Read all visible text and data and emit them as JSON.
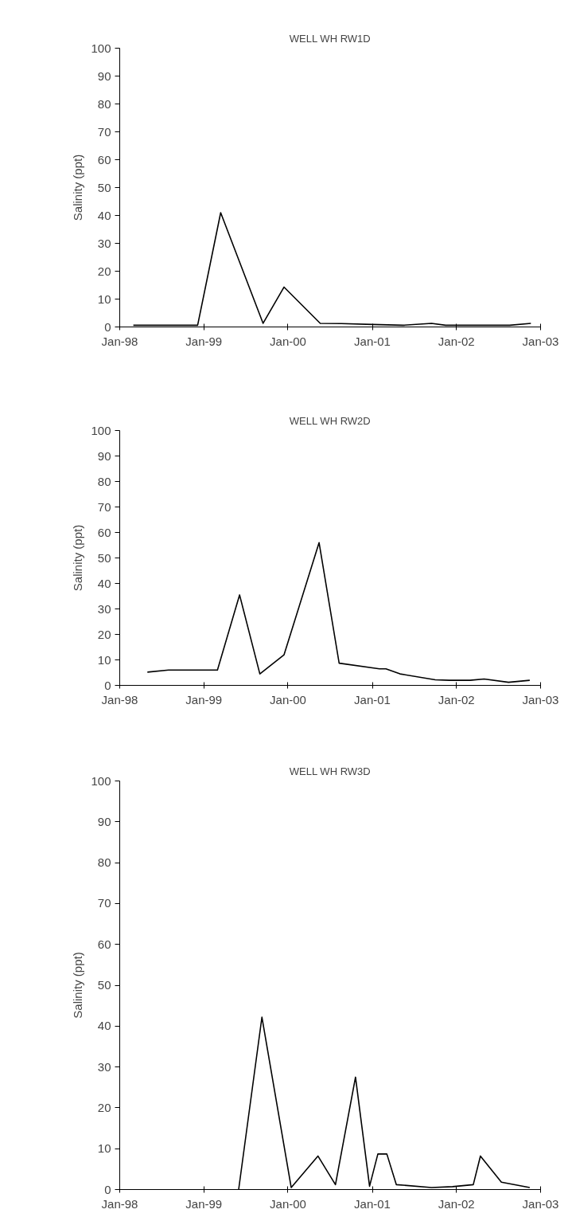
{
  "chart_data": [
    {
      "type": "line",
      "title": "WELL WH RW1D",
      "ylabel": "Salinity (ppt)",
      "grid": false,
      "marker": "none",
      "line_style": "solid",
      "xlim": [
        "1998-01-01",
        "2003-01-01"
      ],
      "ylim": [
        0,
        100
      ],
      "yticks": [
        0,
        10,
        20,
        30,
        40,
        50,
        60,
        70,
        80,
        90,
        100
      ],
      "xticks": [
        {
          "value": "1998-01-01",
          "label": "Jan-98"
        },
        {
          "value": "1999-01-01",
          "label": "Jan-99"
        },
        {
          "value": "2000-01-01",
          "label": "Jan-00"
        },
        {
          "value": "2001-01-01",
          "label": "Jan-01"
        },
        {
          "value": "2002-01-01",
          "label": "Jan-02"
        },
        {
          "value": "2003-01-01",
          "label": "Jan-03"
        }
      ],
      "series": [
        {
          "color": "#000000",
          "x": [
            "1998-03-01",
            "1998-12-05",
            "1999-03-15",
            "1999-09-15",
            "1999-12-15",
            "2000-05-20",
            "2000-08-20",
            "2001-01-01",
            "2001-05-15",
            "2001-09-15",
            "2001-11-15",
            "2002-08-20",
            "2002-11-20"
          ],
          "values": [
            0.6,
            0.6,
            41,
            1.3,
            14.3,
            1.3,
            1.2,
            0.9,
            0.6,
            1.3,
            0.6,
            0.6,
            1.3
          ]
        }
      ]
    },
    {
      "type": "line",
      "title": "WELL WH RW2D",
      "ylabel": "Salinity (ppt)",
      "grid": false,
      "marker": "none",
      "line_style": "solid",
      "xlim": [
        "1998-01-01",
        "2003-01-01"
      ],
      "ylim": [
        0,
        100
      ],
      "yticks": [
        0,
        10,
        20,
        30,
        40,
        50,
        60,
        70,
        80,
        90,
        100
      ],
      "xticks": [
        {
          "value": "1998-01-01",
          "label": "Jan-98"
        },
        {
          "value": "1999-01-01",
          "label": "Jan-99"
        },
        {
          "value": "2000-01-01",
          "label": "Jan-00"
        },
        {
          "value": "2001-01-01",
          "label": "Jan-01"
        },
        {
          "value": "2002-01-01",
          "label": "Jan-02"
        },
        {
          "value": "2003-01-01",
          "label": "Jan-03"
        }
      ],
      "series": [
        {
          "color": "#000000",
          "x": [
            "1998-05-01",
            "1998-08-01",
            "1999-03-01",
            "1999-06-05",
            "1999-09-01",
            "1999-12-15",
            "2000-05-15",
            "2000-08-10",
            "2001-02-01",
            "2001-03-01",
            "2001-05-01",
            "2001-10-01",
            "2001-12-01",
            "2002-03-01",
            "2002-05-01",
            "2002-08-15",
            "2002-11-15"
          ],
          "values": [
            5.2,
            6,
            6,
            35.5,
            4.5,
            12,
            56,
            8.7,
            6.5,
            6.5,
            4.5,
            2.2,
            2,
            2,
            2.5,
            1.2,
            2
          ]
        }
      ]
    },
    {
      "type": "line",
      "title": "WELL WH RW3D",
      "ylabel": "Salinity (ppt)",
      "grid": false,
      "marker": "none",
      "line_style": "solid",
      "xlim": [
        "1998-01-01",
        "2003-01-01"
      ],
      "ylim": [
        0,
        100
      ],
      "yticks": [
        0,
        10,
        20,
        30,
        40,
        50,
        60,
        70,
        80,
        90,
        100
      ],
      "xticks": [
        {
          "value": "1998-01-01",
          "label": "Jan-98"
        },
        {
          "value": "1999-01-01",
          "label": "Jan-99"
        },
        {
          "value": "2000-01-01",
          "label": "Jan-00"
        },
        {
          "value": "2001-01-01",
          "label": "Jan-01"
        },
        {
          "value": "2002-01-01",
          "label": "Jan-02"
        },
        {
          "value": "2003-01-01",
          "label": "Jan-03"
        }
      ],
      "series": [
        {
          "color": "#000000",
          "x": [
            "1999-06-01",
            "1999-09-10",
            "2000-01-15",
            "2000-05-10",
            "2000-07-25",
            "2000-10-20",
            "2000-12-20",
            "2001-01-25",
            "2001-03-05",
            "2001-04-15",
            "2001-09-15",
            "2001-12-15",
            "2002-03-15",
            "2002-04-15",
            "2002-07-15",
            "2002-11-15"
          ],
          "values": [
            0,
            42.2,
            0.5,
            8.2,
            1.2,
            27.5,
            0.8,
            8.7,
            8.7,
            1.2,
            0.5,
            0.7,
            1.2,
            8.2,
            1.8,
            0.5
          ]
        }
      ]
    }
  ]
}
